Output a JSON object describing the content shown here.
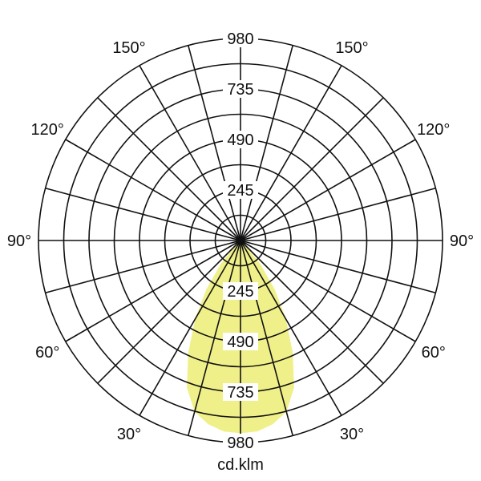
{
  "chart_data": {
    "type": "polar",
    "unit_label": "cd.klm",
    "radial_max": 980,
    "radial_ticks": [
      245,
      490,
      735,
      980
    ],
    "ring_step": 122.5,
    "spoke_step_deg": 15,
    "angle_labels": [
      {
        "text": "150°",
        "side": "left",
        "angle": 150
      },
      {
        "text": "150°",
        "side": "right",
        "angle": 150
      },
      {
        "text": "120°",
        "side": "left",
        "angle": 120
      },
      {
        "text": "120°",
        "side": "right",
        "angle": 120
      },
      {
        "text": "90°",
        "side": "left",
        "angle": 90
      },
      {
        "text": "90°",
        "side": "right",
        "angle": 90
      },
      {
        "text": "60°",
        "side": "left",
        "angle": 60
      },
      {
        "text": "60°",
        "side": "right",
        "angle": 60
      },
      {
        "text": "30°",
        "side": "left",
        "angle": 30
      },
      {
        "text": "30°",
        "side": "right",
        "angle": 30
      }
    ],
    "top_labels": [
      "245",
      "490",
      "735",
      "980"
    ],
    "bottom_labels": [
      "245",
      "490",
      "735",
      "980"
    ],
    "series": [
      {
        "color": "#f0f08a",
        "angles": [
          0,
          5,
          10,
          15,
          20,
          25,
          30,
          35,
          40,
          45,
          50
        ],
        "values": [
          935,
          930,
          905,
          860,
          760,
          600,
          440,
          290,
          150,
          40,
          0
        ]
      }
    ]
  }
}
